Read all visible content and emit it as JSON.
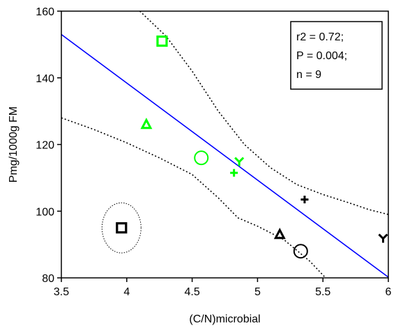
{
  "chart_data": {
    "type": "scatter",
    "title": "",
    "xlabel": "(C/N)microbial",
    "ylabel": "Pmg/1000g FM",
    "xlim": [
      3.5,
      6
    ],
    "ylim": [
      80,
      160
    ],
    "x_ticks": [
      3.5,
      4,
      4.5,
      5,
      5.5,
      6
    ],
    "x_tick_labels": [
      "3.5",
      "4",
      "4.5",
      "5",
      "5.5",
      "6"
    ],
    "y_ticks": [
      80,
      100,
      120,
      140,
      160
    ],
    "y_tick_labels": [
      "80",
      "100",
      "120",
      "140",
      "160"
    ],
    "grid": false,
    "stats_box": {
      "position": "top-right",
      "lines": [
        "r2 = 0.72;",
        "P = 0.004;",
        "n = 9"
      ]
    },
    "colors": {
      "green": "#00ff00",
      "black": "#000000",
      "regression": "#0000ff",
      "ci": "#000000"
    },
    "points": [
      {
        "x": 4.27,
        "y": 151,
        "marker": "square",
        "color": "green"
      },
      {
        "x": 4.15,
        "y": 126,
        "marker": "triangle",
        "color": "green"
      },
      {
        "x": 4.57,
        "y": 116,
        "marker": "circle",
        "color": "green"
      },
      {
        "x": 4.86,
        "y": 115,
        "marker": "y",
        "color": "green"
      },
      {
        "x": 4.82,
        "y": 111.5,
        "marker": "plus",
        "color": "green"
      },
      {
        "x": 5.36,
        "y": 103.5,
        "marker": "plus",
        "color": "black"
      },
      {
        "x": 3.96,
        "y": 95,
        "marker": "square",
        "color": "black",
        "outlier": true
      },
      {
        "x": 5.17,
        "y": 93,
        "marker": "triangle",
        "color": "black"
      },
      {
        "x": 5.33,
        "y": 88,
        "marker": "circle",
        "color": "black"
      },
      {
        "x": 5.96,
        "y": 92,
        "marker": "y",
        "color": "black"
      }
    ],
    "regression_line": {
      "x": [
        3.5,
        6
      ],
      "y": [
        153,
        80.2
      ]
    },
    "confidence_upper": {
      "x": [
        4.1,
        4.3,
        4.5,
        4.7,
        4.9,
        5.1,
        5.3,
        5.5,
        5.7,
        5.85,
        6
      ],
      "y": [
        160,
        152.5,
        142,
        130,
        120,
        113,
        108,
        105,
        102.5,
        100.5,
        99
      ]
    },
    "confidence_lower": {
      "x": [
        3.5,
        3.75,
        4,
        4.25,
        4.5,
        4.7,
        4.85,
        5,
        5.2,
        5.4,
        5.52
      ],
      "y": [
        128,
        124.5,
        120.5,
        116,
        111,
        104,
        98,
        95.5,
        91.5,
        85,
        80
      ]
    }
  }
}
